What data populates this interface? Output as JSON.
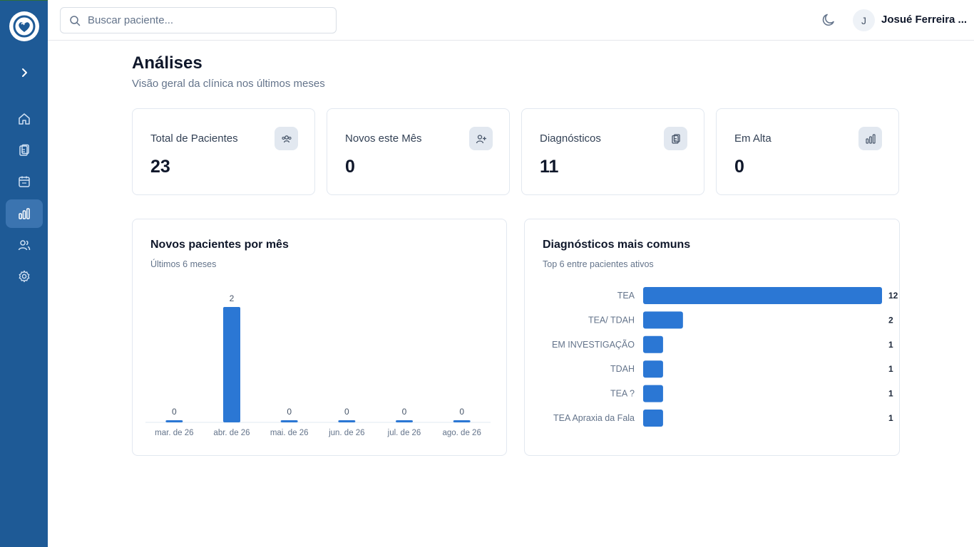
{
  "app": {
    "name": "Clínica"
  },
  "search": {
    "placeholder": "Buscar paciente..."
  },
  "user": {
    "initial": "J",
    "name": "Josué Ferreira ..."
  },
  "sidebar": {
    "items": [
      {
        "name": "expand",
        "icon": "chevron-right-icon"
      },
      {
        "name": "home",
        "icon": "home-icon"
      },
      {
        "name": "records",
        "icon": "clipboard-icon"
      },
      {
        "name": "calendar",
        "icon": "calendar-icon"
      },
      {
        "name": "analytics",
        "icon": "bar-chart-icon",
        "active": true
      },
      {
        "name": "patients",
        "icon": "users-icon"
      },
      {
        "name": "settings",
        "icon": "gear-icon"
      }
    ]
  },
  "page": {
    "title": "Análises",
    "subtitle": "Visão geral da clínica nos últimos meses"
  },
  "stats": [
    {
      "label": "Total de Pacientes",
      "value": "23",
      "icon": "users-group-icon"
    },
    {
      "label": "Novos este Mês",
      "value": "0",
      "icon": "user-plus-icon"
    },
    {
      "label": "Diagnósticos",
      "value": "11",
      "icon": "clipboard-copy-icon"
    },
    {
      "label": "Em Alta",
      "value": "0",
      "icon": "bar-chart-icon"
    }
  ],
  "colors": {
    "bar": "#2b77d4",
    "sidebar": "#1e5a96",
    "sidebar_active": "#3b74b0"
  },
  "chart_data": [
    {
      "type": "bar",
      "title": "Novos pacientes por mês",
      "subtitle": "Últimos 6 meses",
      "categories": [
        "mar. de 26",
        "abr. de 26",
        "mai. de 26",
        "jun. de 26",
        "jul. de 26",
        "ago. de 26"
      ],
      "values": [
        0,
        2,
        0,
        0,
        0,
        0
      ],
      "ylim": [
        0,
        2
      ],
      "grid": false
    },
    {
      "type": "bar",
      "orientation": "horizontal",
      "title": "Diagnósticos mais comuns",
      "subtitle": "Top 6 entre pacientes ativos",
      "categories": [
        "TEA",
        "TEA/ TDAH",
        "EM INVESTIGAÇÃO",
        "TDAH",
        "TEA ?",
        "TEA Apraxia da Fala"
      ],
      "values": [
        12,
        2,
        1,
        1,
        1,
        1
      ],
      "xlim": [
        0,
        12
      ],
      "grid": false
    }
  ]
}
